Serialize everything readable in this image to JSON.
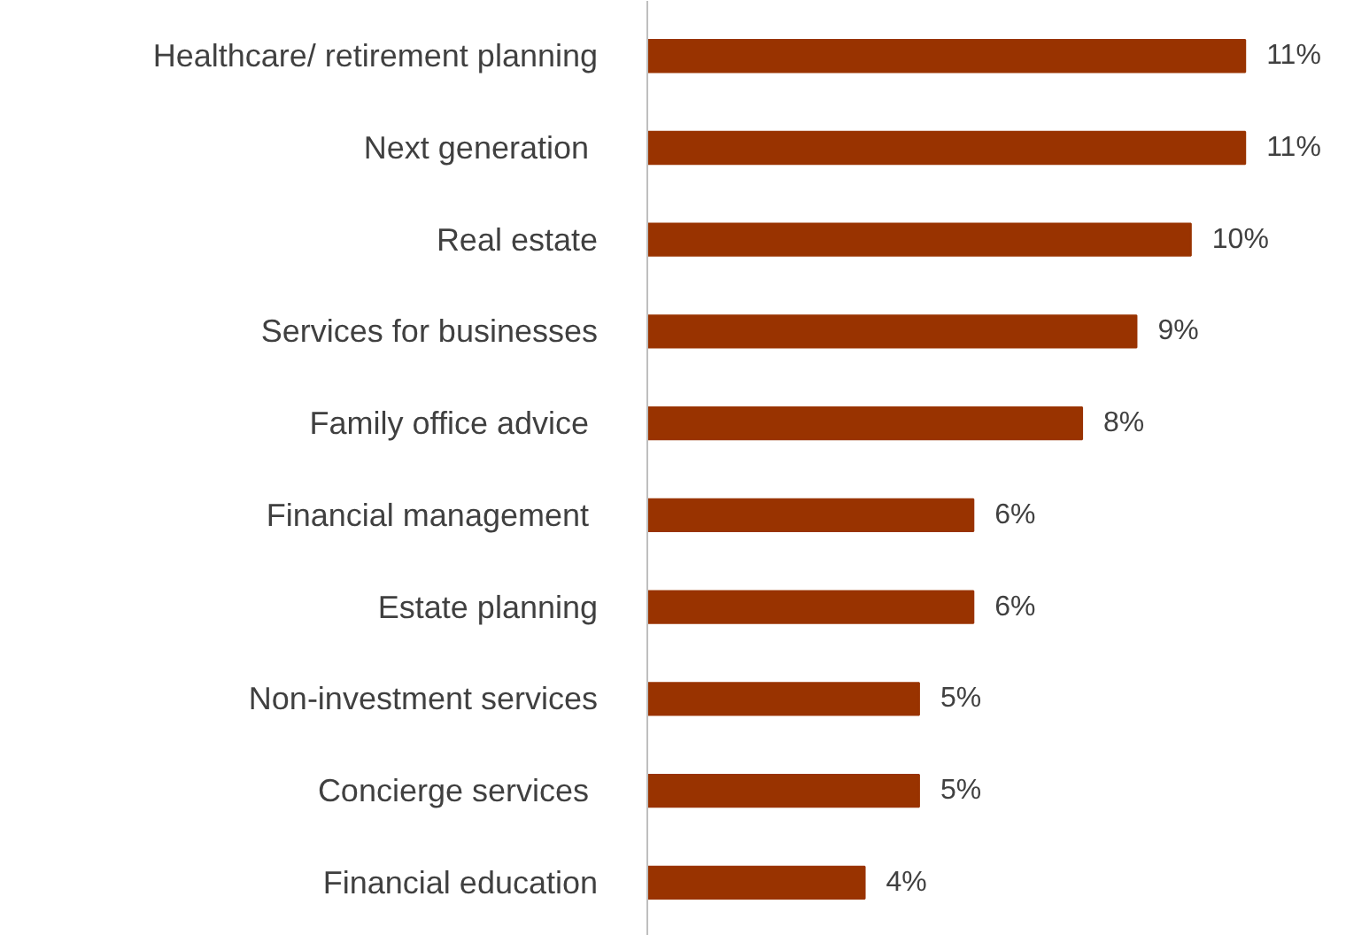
{
  "chart_data": {
    "type": "bar",
    "orientation": "horizontal",
    "color": "#993300",
    "categories": [
      "Healthcare/ retirement planning",
      "Next generation ",
      "Real estate",
      "Services for businesses",
      "Family office  advice",
      "Financial management ",
      "Estate planning",
      "Non-investment services",
      "Concierge services ",
      "Financial education"
    ],
    "values": [
      11,
      11,
      10,
      9,
      8,
      6,
      6,
      5,
      5,
      4
    ],
    "value_labels": [
      "11%",
      "11%",
      "10%",
      "9%",
      "8%",
      "6%",
      "6%",
      "5%",
      "5%",
      "4%"
    ],
    "tick_labels": "y"
  }
}
